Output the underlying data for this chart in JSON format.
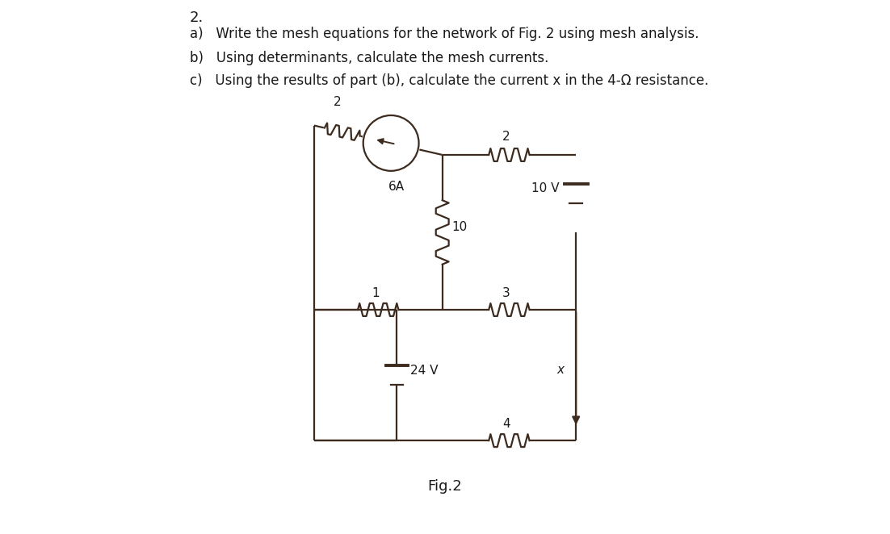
{
  "bg_color": "#ffffff",
  "text_color": "#1a1a1a",
  "line_color": "#3d2b1f",
  "title_number": "2.",
  "questions": [
    "a)   Write the mesh equations for the network of Fig. 2 using mesh analysis.",
    "b)   Using determinants, calculate the mesh currents.",
    "c)   Using the results of part (b), calculate the current x in the 4-Ω resistance."
  ],
  "fig_label": "Fig.2",
  "lw": 1.6,
  "circuit": {
    "xl": 0.255,
    "xm": 0.495,
    "xr": 0.745,
    "yt": 0.71,
    "ym": 0.42,
    "yb": 0.175
  }
}
